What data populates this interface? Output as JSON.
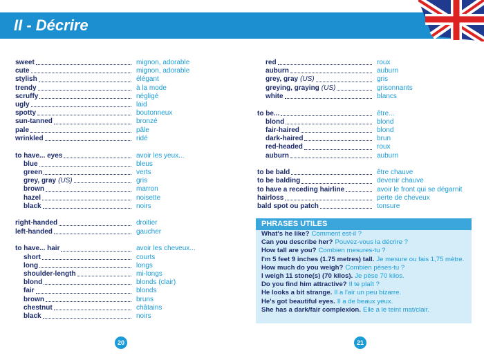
{
  "header": {
    "title": "II - Décrire"
  },
  "left": {
    "groups": [
      {
        "items": [
          {
            "en": "sweet",
            "fr": "mignon, adorable"
          },
          {
            "en": "cute",
            "fr": "mignon, adorable"
          },
          {
            "en": "stylish",
            "fr": "élégant"
          },
          {
            "en": "trendy",
            "fr": "à la mode"
          },
          {
            "en": "scruffy",
            "fr": "négligé"
          },
          {
            "en": "ugly",
            "fr": "laid"
          },
          {
            "en": "spotty",
            "fr": "boutonneux"
          },
          {
            "en": "sun-tanned",
            "fr": "bronzé"
          },
          {
            "en": "pale",
            "fr": "pâle"
          },
          {
            "en": "wrinkled",
            "fr": "ridé"
          }
        ]
      },
      {
        "head": {
          "en": "to have... eyes",
          "fr": "avoir les yeux..."
        },
        "items": [
          {
            "en": "blue",
            "fr": "bleus"
          },
          {
            "en": "green",
            "fr": "verts"
          },
          {
            "en": "grey, gray",
            "note": "(US)",
            "fr": "gris"
          },
          {
            "en": "brown",
            "fr": "marron"
          },
          {
            "en": "hazel",
            "fr": "noisette"
          },
          {
            "en": "black",
            "fr": "noirs"
          }
        ]
      },
      {
        "items": [
          {
            "en": "right-handed",
            "fr": "droitier"
          },
          {
            "en": "left-handed",
            "fr": "gaucher"
          }
        ]
      },
      {
        "head": {
          "en": "to have... hair",
          "fr": "avoir les cheveux..."
        },
        "items": [
          {
            "en": "short",
            "fr": "courts"
          },
          {
            "en": "long",
            "fr": "longs"
          },
          {
            "en": "shoulder-length",
            "fr": "mi-longs"
          },
          {
            "en": "blond",
            "fr": "blonds (clair)"
          },
          {
            "en": "fair",
            "fr": "blonds"
          },
          {
            "en": "brown",
            "fr": "bruns"
          },
          {
            "en": "chestnut",
            "fr": "châtains"
          },
          {
            "en": "black",
            "fr": "noirs"
          }
        ]
      }
    ]
  },
  "right": {
    "groups": [
      {
        "items": [
          {
            "en": "red",
            "fr": "roux"
          },
          {
            "en": "auburn",
            "fr": "auburn"
          },
          {
            "en": "grey, gray",
            "note": "(US)",
            "fr": "gris"
          },
          {
            "en": "greying, graying",
            "note": "(US)",
            "fr": "grisonnants"
          },
          {
            "en": "white",
            "fr": "blancs"
          }
        ]
      },
      {
        "head": {
          "en": "to be...",
          "fr": "être..."
        },
        "items": [
          {
            "en": "blond",
            "fr": "blond"
          },
          {
            "en": "fair-haired",
            "fr": "blond"
          },
          {
            "en": "dark-haired",
            "fr": "brun"
          },
          {
            "en": "red-headed",
            "fr": "roux"
          },
          {
            "en": "auburn",
            "fr": "auburn"
          }
        ]
      },
      {
        "items": [
          {
            "en": "to be bald",
            "fr": "être chauve"
          },
          {
            "en": "to be balding",
            "fr": "devenir chauve"
          },
          {
            "en": "to have a receding hairline",
            "fr": "avoir le front qui se dégarnit"
          },
          {
            "en": "hairloss",
            "fr": "perte de cheveux"
          },
          {
            "en": "bald spot ou patch",
            "fr": "tonsure"
          }
        ]
      }
    ]
  },
  "phrases": {
    "title": "PHRASES UTILES",
    "rows": [
      {
        "en": "What's he like?",
        "fr": "Comment est-il ?"
      },
      {
        "en": "Can you describe her?",
        "fr": "Pouvez-vous la décrire ?"
      },
      {
        "en": "How tall are you?",
        "fr": "Combien mesures-tu ?"
      },
      {
        "en": "I'm 5 feet 9 inches (1.75 metres) tall.",
        "fr": "Je mesure ou fais 1,75 mètre."
      },
      {
        "en": "How much do you weigh?",
        "fr": "Combien pèses-tu ?"
      },
      {
        "en": "I weigh 11 stone(s) (70 kilos).",
        "fr": "Je pèse 70 kilos."
      },
      {
        "en": "Do you find him attractive?",
        "fr": "Il te plaît ?"
      },
      {
        "en": "He looks a bit strange.",
        "fr": "Il a l'air un peu bizarre."
      },
      {
        "en": "He's got beautiful eyes.",
        "fr": "Il a de beaux yeux."
      },
      {
        "en": "She has a dark/fair complexion.",
        "fr": "Elle a le teint mat/clair."
      }
    ]
  },
  "page_numbers": [
    "20",
    "21"
  ]
}
